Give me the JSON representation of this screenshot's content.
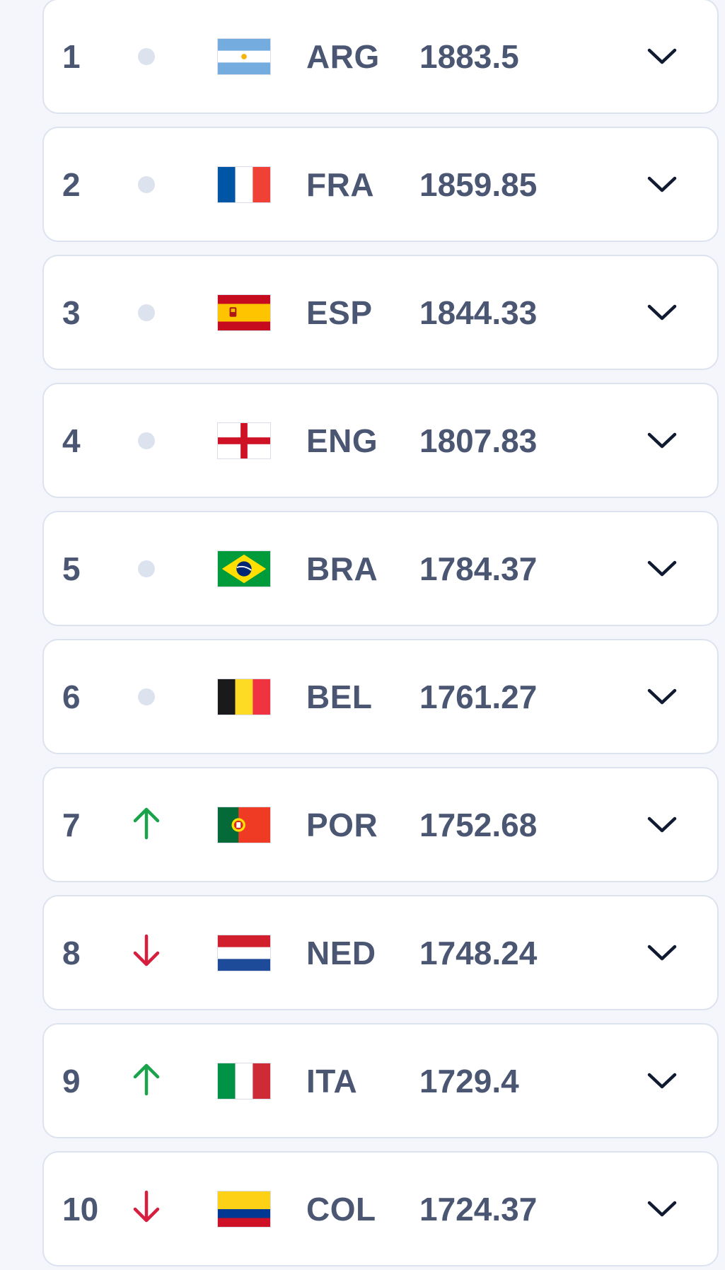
{
  "colors": {
    "text": "#4a5672",
    "neutral_dot": "#dde3ee",
    "up": "#1aa34a",
    "down": "#d81e3f",
    "chevron": "#101a30",
    "card_border": "#dde3ee",
    "background": "#f4f6fb"
  },
  "rankings": [
    {
      "rank": "1",
      "trend": "same",
      "flag": "arg",
      "code": "ARG",
      "points": "1883.5"
    },
    {
      "rank": "2",
      "trend": "same",
      "flag": "fra",
      "code": "FRA",
      "points": "1859.85"
    },
    {
      "rank": "3",
      "trend": "same",
      "flag": "esp",
      "code": "ESP",
      "points": "1844.33"
    },
    {
      "rank": "4",
      "trend": "same",
      "flag": "eng",
      "code": "ENG",
      "points": "1807.83"
    },
    {
      "rank": "5",
      "trend": "same",
      "flag": "bra",
      "code": "BRA",
      "points": "1784.37"
    },
    {
      "rank": "6",
      "trend": "same",
      "flag": "bel",
      "code": "BEL",
      "points": "1761.27"
    },
    {
      "rank": "7",
      "trend": "up",
      "flag": "por",
      "code": "POR",
      "points": "1752.68"
    },
    {
      "rank": "8",
      "trend": "down",
      "flag": "ned",
      "code": "NED",
      "points": "1748.24"
    },
    {
      "rank": "9",
      "trend": "up",
      "flag": "ita",
      "code": "ITA",
      "points": "1729.4"
    },
    {
      "rank": "10",
      "trend": "down",
      "flag": "col",
      "code": "COL",
      "points": "1724.37"
    }
  ]
}
